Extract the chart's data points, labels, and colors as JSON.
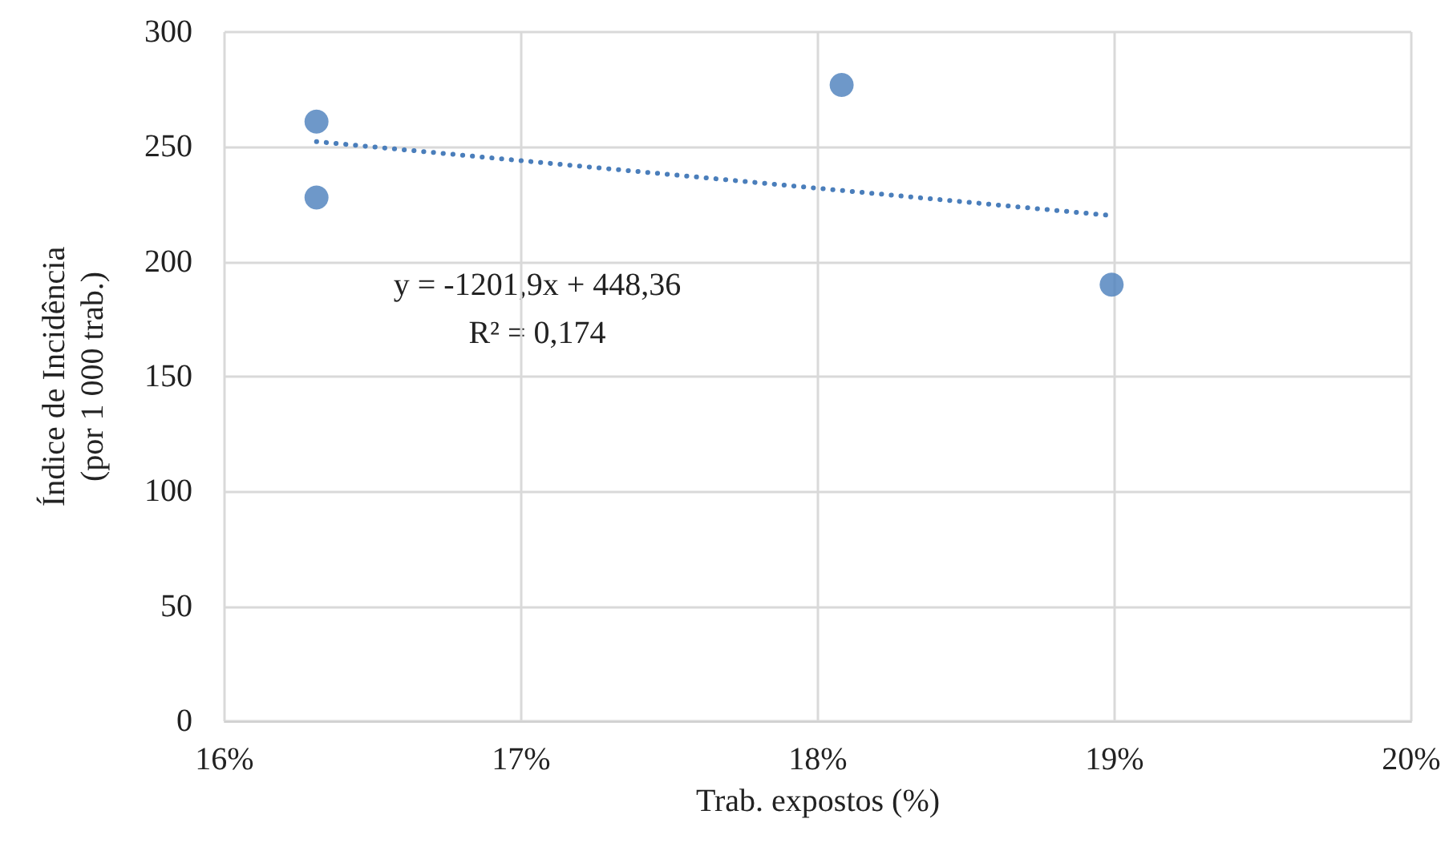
{
  "chart_data": {
    "type": "scatter",
    "xlabel": "Trab. expostos (%)",
    "ylabel": "Índice de Incidência\n(por 1 000 trab.)",
    "xlim": [
      0.16,
      0.2
    ],
    "xticks": [
      {
        "value": 0.16,
        "label": "16%"
      },
      {
        "value": 0.17,
        "label": "17%"
      },
      {
        "value": 0.18,
        "label": "18%"
      },
      {
        "value": 0.19,
        "label": "19%"
      },
      {
        "value": 0.2,
        "label": "20%"
      }
    ],
    "ylim": [
      0,
      300
    ],
    "yticks": [
      0,
      50,
      100,
      150,
      200,
      250,
      300
    ],
    "grid": true,
    "marker": "circle",
    "series": [
      {
        "color": "#4a7ebb",
        "x": [
          0.1631,
          0.1631,
          0.1808,
          0.1899
        ],
        "values": [
          261,
          228,
          277,
          190
        ]
      },
      {
        "type": "line",
        "color": "#4a7ebb",
        "line_style": "dotted",
        "marker": "none",
        "x": [
          0.1631,
          0.1899
        ],
        "values": [
          252.3,
          220.1
        ]
      }
    ],
    "annotations": [
      "y = -1201,9x + 448,36",
      "R² = 0,174"
    ]
  }
}
